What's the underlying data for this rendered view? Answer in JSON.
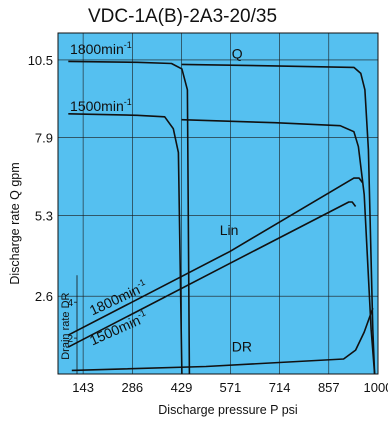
{
  "chart_data": {
    "type": "line",
    "title": "VDC-1A(B)-2A3-20/35",
    "xlabel": "Discharge pressure P psi",
    "ylabel": "Discharge rate Q gpm",
    "y2label": "Drain rate DR",
    "xlim": [
      70,
      1000
    ],
    "ylim": [
      0,
      11.4
    ],
    "x_ticks": [
      143,
      286,
      429,
      571,
      714,
      857,
      1000
    ],
    "y_ticks": [
      2.6,
      5.3,
      7.9,
      10.5
    ],
    "y_ticks_labels": [
      "2.6",
      "5.3",
      "7.9",
      "10.5"
    ],
    "drain_ticks": [
      2,
      4
    ],
    "grid": true,
    "background": "#55c0f0",
    "line_color": "#111111",
    "annotations": [
      {
        "text": "1800min",
        "sup": "-1",
        "x": 105,
        "y": 10.7
      },
      {
        "text": "1500min",
        "sup": "-1",
        "x": 105,
        "y": 8.8
      },
      {
        "text": "Q",
        "x": 575,
        "y": 10.55
      },
      {
        "text": "Lin",
        "x": 540,
        "y": 4.65
      },
      {
        "text": "DR",
        "x": 575,
        "y": 0.75
      },
      {
        "text": "1800min",
        "sup": "-1",
        "x": 170,
        "y": 1.95,
        "rotate": -25
      },
      {
        "text": "1500min",
        "sup": "-1",
        "x": 170,
        "y": 0.95,
        "rotate": -24
      }
    ],
    "series": [
      {
        "name": "Q 1800min-1",
        "x": [
          100,
          300,
          400,
          430,
          446,
          452
        ],
        "y": [
          10.45,
          10.42,
          10.38,
          10.2,
          9.5,
          0
        ]
      },
      {
        "name": "Q 1500min-1",
        "x": [
          100,
          300,
          380,
          405,
          420,
          430
        ],
        "y": [
          8.7,
          8.65,
          8.6,
          8.2,
          7.4,
          0
        ]
      },
      {
        "name": "Q right 1800min-1",
        "x": [
          429,
          700,
          930,
          950,
          962,
          972,
          985,
          990
        ],
        "y": [
          10.35,
          10.3,
          10.25,
          10.05,
          9.5,
          7.5,
          1.5,
          0
        ]
      },
      {
        "name": "Q right 1500min-1",
        "x": [
          429,
          700,
          890,
          930,
          943,
          960,
          980,
          990
        ],
        "y": [
          8.5,
          8.4,
          8.3,
          8.1,
          7.6,
          6.0,
          1.5,
          0
        ]
      },
      {
        "name": "Lin 1800min-1",
        "x": [
          100,
          570,
          930,
          945,
          955
        ],
        "y": [
          1.3,
          4.1,
          6.55,
          6.55,
          6.4
        ]
      },
      {
        "name": "Lin 1500min-1",
        "x": [
          100,
          570,
          915,
          925,
          935
        ],
        "y": [
          0.9,
          3.7,
          5.75,
          5.75,
          5.6
        ]
      },
      {
        "name": "DR",
        "x": [
          110,
          500,
          900,
          935,
          960,
          985
        ],
        "y": [
          0.12,
          0.25,
          0.5,
          0.8,
          1.4,
          2.2
        ]
      }
    ]
  }
}
